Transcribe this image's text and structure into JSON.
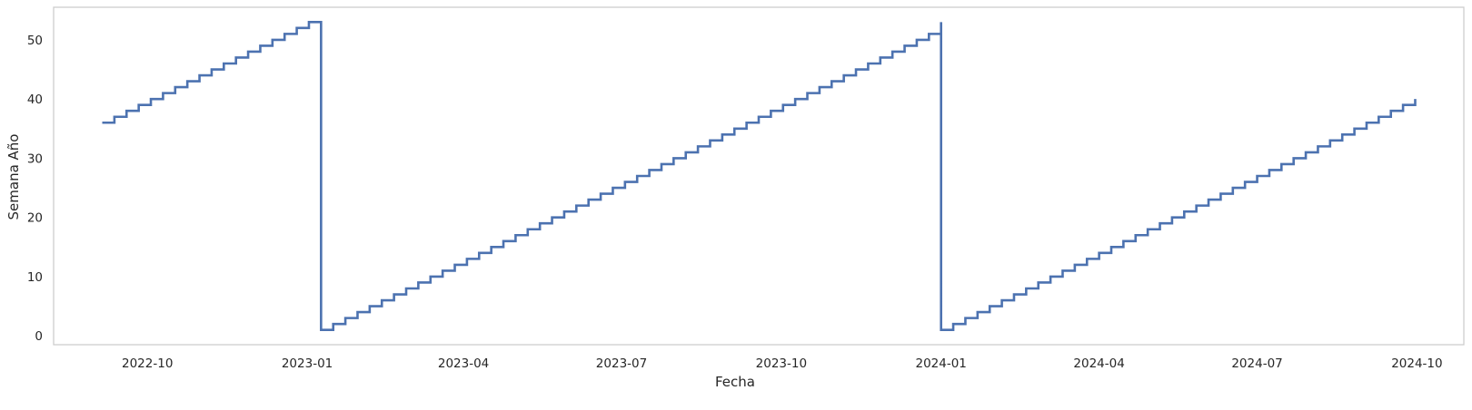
{
  "chart_data": {
    "type": "line",
    "step": "post",
    "title": "",
    "xlabel": "Fecha",
    "ylabel": "Semana Año",
    "grid": false,
    "x_start": "2022-09-05",
    "x_end": "2024-09-30",
    "xlim": [
      "2022-08-08",
      "2024-10-28"
    ],
    "ylim": [
      -1.5,
      55.5
    ],
    "x_ticks": [
      "2022-10",
      "2023-01",
      "2023-04",
      "2023-07",
      "2023-10",
      "2024-01",
      "2024-04",
      "2024-07",
      "2024-10"
    ],
    "y_ticks": [
      0,
      10,
      20,
      30,
      40,
      50
    ],
    "series": [
      {
        "color": "#4c72b0",
        "points": [
          [
            "2022-09-05",
            36
          ],
          [
            "2022-09-12",
            37
          ],
          [
            "2022-09-19",
            38
          ],
          [
            "2022-09-26",
            39
          ],
          [
            "2022-10-03",
            40
          ],
          [
            "2022-10-10",
            41
          ],
          [
            "2022-10-17",
            42
          ],
          [
            "2022-10-24",
            43
          ],
          [
            "2022-10-31",
            44
          ],
          [
            "2022-11-07",
            45
          ],
          [
            "2022-11-14",
            46
          ],
          [
            "2022-11-21",
            47
          ],
          [
            "2022-11-28",
            48
          ],
          [
            "2022-12-05",
            49
          ],
          [
            "2022-12-12",
            50
          ],
          [
            "2022-12-19",
            51
          ],
          [
            "2022-12-26",
            52
          ],
          [
            "2023-01-02",
            53
          ],
          [
            "2023-01-09",
            1
          ],
          [
            "2023-01-16",
            2
          ],
          [
            "2023-01-23",
            3
          ],
          [
            "2023-01-30",
            4
          ],
          [
            "2023-02-06",
            5
          ],
          [
            "2023-02-13",
            6
          ],
          [
            "2023-02-20",
            7
          ],
          [
            "2023-02-27",
            8
          ],
          [
            "2023-03-06",
            9
          ],
          [
            "2023-03-13",
            10
          ],
          [
            "2023-03-20",
            11
          ],
          [
            "2023-03-27",
            12
          ],
          [
            "2023-04-03",
            13
          ],
          [
            "2023-04-10",
            14
          ],
          [
            "2023-04-17",
            15
          ],
          [
            "2023-04-24",
            16
          ],
          [
            "2023-05-01",
            17
          ],
          [
            "2023-05-08",
            18
          ],
          [
            "2023-05-15",
            19
          ],
          [
            "2023-05-22",
            20
          ],
          [
            "2023-05-29",
            21
          ],
          [
            "2023-06-05",
            22
          ],
          [
            "2023-06-12",
            23
          ],
          [
            "2023-06-19",
            24
          ],
          [
            "2023-06-26",
            25
          ],
          [
            "2023-07-03",
            26
          ],
          [
            "2023-07-10",
            27
          ],
          [
            "2023-07-17",
            28
          ],
          [
            "2023-07-24",
            29
          ],
          [
            "2023-07-31",
            30
          ],
          [
            "2023-08-07",
            31
          ],
          [
            "2023-08-14",
            32
          ],
          [
            "2023-08-21",
            33
          ],
          [
            "2023-08-28",
            34
          ],
          [
            "2023-09-04",
            35
          ],
          [
            "2023-09-11",
            36
          ],
          [
            "2023-09-18",
            37
          ],
          [
            "2023-09-25",
            38
          ],
          [
            "2023-10-02",
            39
          ],
          [
            "2023-10-09",
            40
          ],
          [
            "2023-10-16",
            41
          ],
          [
            "2023-10-23",
            42
          ],
          [
            "2023-10-30",
            43
          ],
          [
            "2023-11-06",
            44
          ],
          [
            "2023-11-13",
            45
          ],
          [
            "2023-11-20",
            46
          ],
          [
            "2023-11-27",
            47
          ],
          [
            "2023-12-04",
            48
          ],
          [
            "2023-12-11",
            49
          ],
          [
            "2023-12-18",
            50
          ],
          [
            "2023-12-25",
            51
          ],
          [
            "2024-01-01",
            52
          ],
          [
            "2024-01-01",
            53
          ],
          [
            "2024-01-01",
            1
          ],
          [
            "2024-01-08",
            2
          ],
          [
            "2024-01-15",
            3
          ],
          [
            "2024-01-22",
            4
          ],
          [
            "2024-01-29",
            5
          ],
          [
            "2024-02-05",
            6
          ],
          [
            "2024-02-12",
            7
          ],
          [
            "2024-02-19",
            8
          ],
          [
            "2024-02-26",
            9
          ],
          [
            "2024-03-04",
            10
          ],
          [
            "2024-03-11",
            11
          ],
          [
            "2024-03-18",
            12
          ],
          [
            "2024-03-25",
            13
          ],
          [
            "2024-04-01",
            14
          ],
          [
            "2024-04-08",
            15
          ],
          [
            "2024-04-15",
            16
          ],
          [
            "2024-04-22",
            17
          ],
          [
            "2024-04-29",
            18
          ],
          [
            "2024-05-06",
            19
          ],
          [
            "2024-05-13",
            20
          ],
          [
            "2024-05-20",
            21
          ],
          [
            "2024-05-27",
            22
          ],
          [
            "2024-06-03",
            23
          ],
          [
            "2024-06-10",
            24
          ],
          [
            "2024-06-17",
            25
          ],
          [
            "2024-06-24",
            26
          ],
          [
            "2024-07-01",
            27
          ],
          [
            "2024-07-08",
            28
          ],
          [
            "2024-07-15",
            29
          ],
          [
            "2024-07-22",
            30
          ],
          [
            "2024-07-29",
            31
          ],
          [
            "2024-08-05",
            32
          ],
          [
            "2024-08-12",
            33
          ],
          [
            "2024-08-19",
            34
          ],
          [
            "2024-08-26",
            35
          ],
          [
            "2024-09-02",
            36
          ],
          [
            "2024-09-09",
            37
          ],
          [
            "2024-09-16",
            38
          ],
          [
            "2024-09-23",
            39
          ],
          [
            "2024-09-30",
            40
          ]
        ]
      }
    ]
  }
}
